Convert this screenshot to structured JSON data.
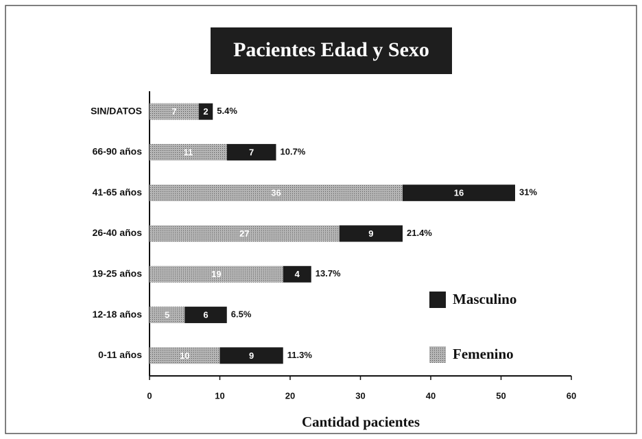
{
  "chart_data": {
    "type": "stacked_barh",
    "title": "Pacientes Edad y Sexo",
    "xlabel": "Cantidad pacientes",
    "categories": [
      "SIN/DATOS",
      "66-90 años",
      "41-65 años",
      "26-40 años",
      "19-25 años",
      "12-18 años",
      "0-11 años"
    ],
    "series": [
      {
        "name": "Femenino",
        "color": "#a3a3a3",
        "values": [
          7,
          11,
          36,
          27,
          19,
          5,
          10
        ]
      },
      {
        "name": "Masculino",
        "color": "#1c1c1c",
        "values": [
          2,
          7,
          16,
          9,
          4,
          6,
          9
        ]
      }
    ],
    "percent_labels": [
      "5.4%",
      "10.7%",
      "31%",
      "21.4%",
      "13.7%",
      "6.5%",
      "11.3%"
    ],
    "xlim": [
      0,
      60
    ],
    "xticks": [
      0,
      10,
      20,
      30,
      40,
      50,
      60
    ],
    "legend": "right"
  }
}
